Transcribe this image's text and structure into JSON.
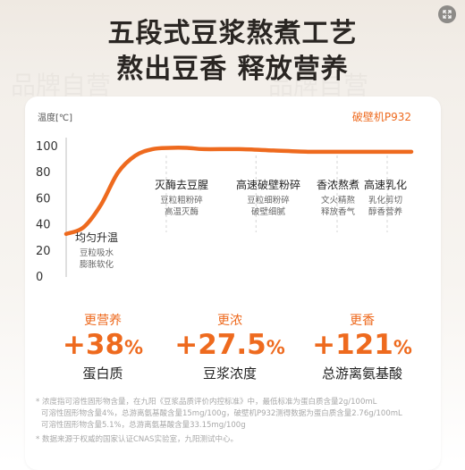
{
  "title_line1": "五段式豆浆熬煮工艺",
  "title_line2": "熬出豆香 释放营养",
  "chart_data": {
    "type": "line",
    "y_axis_label": "温度[℃]",
    "series_label": "破壁机P932",
    "ylim": [
      0,
      100
    ],
    "y_ticks": [
      "100",
      "80",
      "60",
      "40",
      "20",
      "0"
    ],
    "grid": false,
    "color": "#ee6a1e",
    "series": [
      {
        "x": [
          0,
          0.05,
          0.1,
          0.15,
          0.2,
          0.25,
          0.3,
          0.35,
          0.4,
          0.5,
          0.6,
          0.7,
          0.8,
          0.9,
          1.0
        ],
        "values": [
          33,
          38,
          55,
          80,
          93,
          98,
          99,
          99,
          98,
          98,
          97,
          96,
          96,
          96,
          96
        ]
      }
    ],
    "stages": [
      {
        "title": "均匀升温",
        "desc1": "豆粒吸水",
        "desc2": "膨胀软化"
      },
      {
        "title": "灭酶去豆腥",
        "desc1": "豆粒粗粉碎",
        "desc2": "高温灭酶"
      },
      {
        "title": "高速破壁粉碎",
        "desc1": "豆粒细粉碎",
        "desc2": "破壁细腻"
      },
      {
        "title": "香浓熬煮",
        "desc1": "文火精熬",
        "desc2": "释放香气"
      },
      {
        "title": "高速乳化",
        "desc1": "乳化剪切",
        "desc2": "醇香营养"
      }
    ]
  },
  "stats": [
    {
      "label": "更营养",
      "value": "+38",
      "unit": "%",
      "name": "蛋白质"
    },
    {
      "label": "更浓",
      "value": "+27.5",
      "unit": "%",
      "name": "豆浆浓度"
    },
    {
      "label": "更香",
      "value": "+121",
      "unit": "%",
      "name": "总游离氨基酸"
    }
  ],
  "footnotes": {
    "line1": "* 浓度指可溶性固形物含量，在九阳《豆浆品质评价内控标准》中，最低标准为蛋白质含量2g/100mL",
    "line2": "可溶性固形物含量4%，总游离氨基酸含量15mg/100g，破壁机P932测得数据为蛋白质含量2.76g/100mL",
    "line3": "可溶性固形物含量5.1%，总游离氨基酸含量33.15mg/100g",
    "line4": "* 数据来源于权威的国家认证CNAS实验室，九阳测试中心。"
  },
  "watermark": "品牌自营"
}
